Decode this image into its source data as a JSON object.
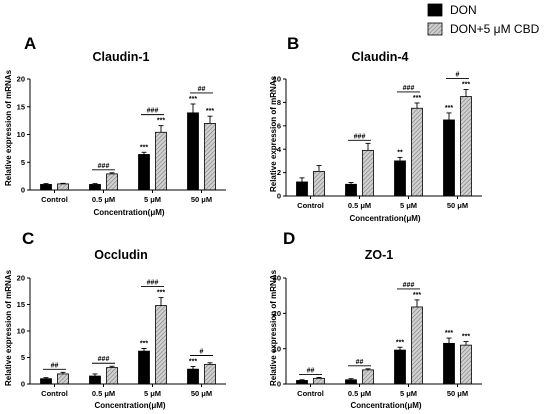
{
  "legend": [
    {
      "label": "DON",
      "color": "#000000",
      "pattern": "solid"
    },
    {
      "label": "DON+5 μM CBD",
      "color": "#bdbdbd",
      "pattern": "hatch"
    }
  ],
  "chart_data": [
    {
      "letter": "A",
      "type": "bar",
      "title": "Claudin-1",
      "xlabel": "Concentration(μM)",
      "ylabel": "Relative expression of mRNAs",
      "categories": [
        "Control",
        "0.5 μM",
        "5 μM",
        "50 μM"
      ],
      "ylim": [
        0,
        20
      ],
      "yticks": [
        "0",
        "5",
        "10",
        "15",
        "20"
      ],
      "series": [
        {
          "name": "DON",
          "values": [
            1.0,
            1.0,
            6.4,
            13.9
          ],
          "errors": [
            0.15,
            0.15,
            0.4,
            1.6
          ],
          "stars": [
            "",
            "",
            "***",
            "***"
          ]
        },
        {
          "name": "DON+5 μM CBD",
          "values": [
            1.1,
            2.9,
            10.4,
            12.0
          ],
          "errors": [
            0.1,
            0.2,
            1.2,
            1.3
          ],
          "stars": [
            "",
            "",
            "***",
            "***"
          ]
        }
      ],
      "brackets": [
        "",
        "###",
        "###",
        "##"
      ]
    },
    {
      "letter": "B",
      "type": "bar",
      "title": "Claudin-4",
      "xlabel": "Concentration(μM)",
      "ylabel": "Relative expression of mRNAs",
      "categories": [
        "Control",
        "0.5 μM",
        "5 μM",
        "50 μM"
      ],
      "ylim": [
        0,
        10
      ],
      "yticks": [
        "0",
        "2",
        "4",
        "6",
        "8",
        "10"
      ],
      "series": [
        {
          "name": "DON",
          "values": [
            1.2,
            1.0,
            3.0,
            6.5
          ],
          "errors": [
            0.35,
            0.15,
            0.3,
            0.6
          ],
          "stars": [
            "",
            "",
            "**",
            "***"
          ]
        },
        {
          "name": "DON+5 μM CBD",
          "values": [
            2.1,
            3.9,
            7.5,
            8.5
          ],
          "errors": [
            0.5,
            0.6,
            0.45,
            0.6
          ],
          "stars": [
            "",
            "",
            "***",
            "***"
          ]
        }
      ],
      "brackets": [
        "",
        "###",
        "###",
        "#"
      ]
    },
    {
      "letter": "C",
      "type": "bar",
      "title": "Occludin",
      "xlabel": "Concentration(μM)",
      "ylabel": "Relative expression of mRNAs",
      "categories": [
        "Control",
        "0.5 μM",
        "5 μM",
        "50 μM"
      ],
      "ylim": [
        0,
        20
      ],
      "yticks": [
        "0",
        "5",
        "10",
        "15",
        "20"
      ],
      "series": [
        {
          "name": "DON",
          "values": [
            1.0,
            1.5,
            6.2,
            2.8
          ],
          "errors": [
            0.2,
            0.4,
            0.5,
            0.5
          ],
          "stars": [
            "",
            "",
            "***",
            "***"
          ]
        },
        {
          "name": "DON+5 μM CBD",
          "values": [
            1.9,
            3.1,
            14.8,
            3.7
          ],
          "errors": [
            0.3,
            0.25,
            1.5,
            0.3
          ],
          "stars": [
            "",
            "",
            "***",
            ""
          ]
        }
      ],
      "brackets": [
        "##",
        "###",
        "###",
        "#"
      ]
    },
    {
      "letter": "D",
      "type": "bar",
      "title": "ZO-1",
      "xlabel": "Concentration(μM)",
      "ylabel": "Relative expression of mRNAs",
      "categories": [
        "Control",
        "0.5 μM",
        "5 μM",
        "50 μM"
      ],
      "ylim": [
        0,
        30
      ],
      "yticks": [
        "0",
        "10",
        "20",
        "30"
      ],
      "series": [
        {
          "name": "DON",
          "values": [
            1.0,
            1.2,
            9.6,
            11.5
          ],
          "errors": [
            0.2,
            0.3,
            0.8,
            1.5
          ],
          "stars": [
            "",
            "",
            "***",
            "***"
          ]
        },
        {
          "name": "DON+5 μM CBD",
          "values": [
            1.6,
            4.0,
            21.8,
            11.0
          ],
          "errors": [
            0.25,
            0.3,
            2.0,
            1.0
          ],
          "stars": [
            "",
            "",
            "***",
            "***"
          ]
        }
      ],
      "brackets": [
        "##",
        "##",
        "###",
        ""
      ]
    }
  ]
}
